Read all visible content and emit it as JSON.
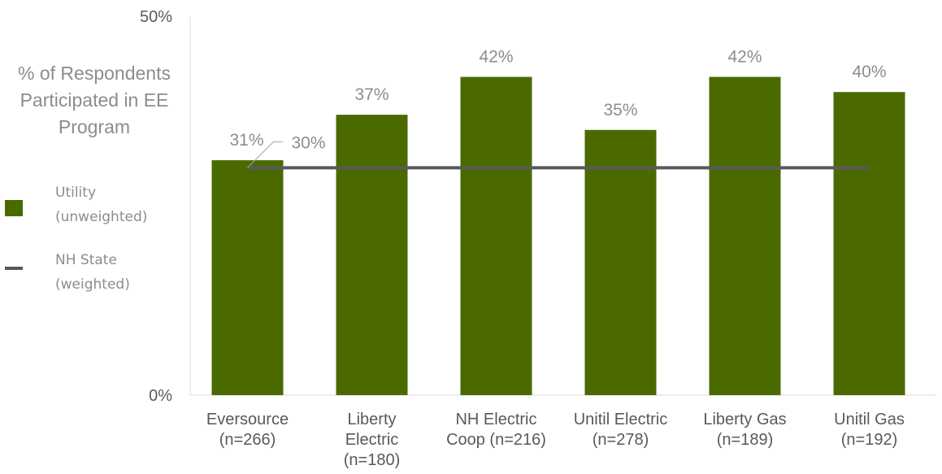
{
  "chart_data": {
    "type": "bar",
    "title": "",
    "ylabel": [
      "% of Respondents",
      "Participated in EE",
      "Program"
    ],
    "ylim": [
      0,
      50
    ],
    "yticks": [
      "0%",
      "50%"
    ],
    "categories": [
      [
        "Eversource",
        "(n=266)"
      ],
      [
        "Liberty",
        "Electric",
        "(n=180)"
      ],
      [
        "NH Electric",
        "Coop (n=216)"
      ],
      [
        "Unitil Electric",
        "(n=278)"
      ],
      [
        "Liberty Gas",
        "(n=189)"
      ],
      [
        "Unitil Gas",
        "(n=192)"
      ]
    ],
    "series": [
      {
        "name": "Utility (unweighted)",
        "type": "bar",
        "values": [
          31,
          37,
          42,
          35,
          42,
          40
        ],
        "labels": [
          "31%",
          "37%",
          "42%",
          "35%",
          "42%",
          "40%"
        ],
        "color": "#4a6a00"
      },
      {
        "name": "NH State (weighted)",
        "type": "line",
        "value": 30,
        "label": "30%",
        "color": "#595959"
      }
    ],
    "legend": {
      "position": "left",
      "items": [
        {
          "lines": [
            "Utility",
            "(unweighted)"
          ]
        },
        {
          "lines": [
            "NH State",
            "(weighted)"
          ]
        }
      ]
    },
    "grid": false
  }
}
